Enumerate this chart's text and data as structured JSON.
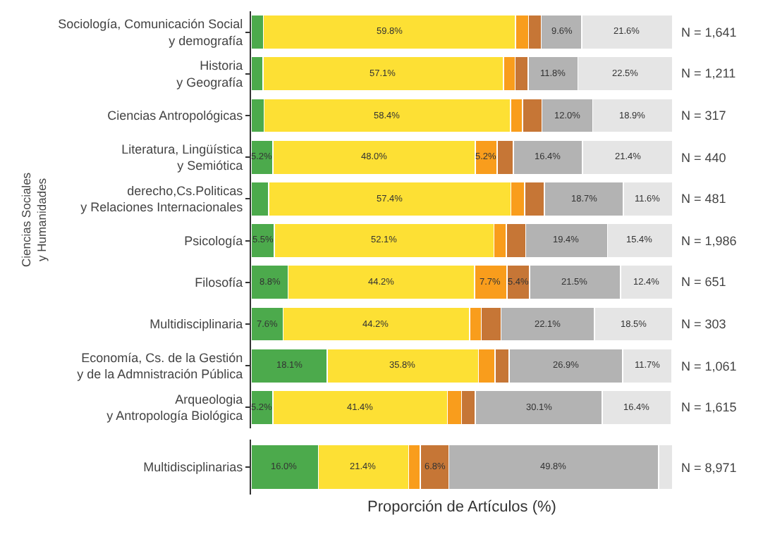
{
  "chart_data": [
    {
      "type": "bar",
      "orientation": "horizontal",
      "stacked": true,
      "ylabel": "Ciencias Sociales\ny Humanidades",
      "xlim": [
        0,
        100
      ],
      "tick_labels": "y",
      "categories": [
        "Sociología, Comunicación Social\ny demografía",
        "Historia\ny Geografía",
        "Ciencias Antropológicas",
        "Literatura, Lingüística\ny Semiótica",
        "derecho,Cs.Politicas\ny Relaciones Internacionales",
        "Psicología",
        "Filosofía",
        "Multidisciplinaria",
        "Economía, Cs. de la Gestión\ny de la Admnistración Pública",
        "Arqueologia\ny Antropología Biológica"
      ],
      "series": [
        {
          "color": "#4caa4c",
          "values": [
            2.9,
            2.8,
            3.1,
            5.2,
            4.2,
            5.5,
            8.8,
            7.6,
            18.1,
            5.2
          ],
          "value_labels": [
            null,
            null,
            null,
            "5.2%",
            null,
            "5.5%",
            "8.8%",
            "7.6%",
            "18.1%",
            "5.2%"
          ]
        },
        {
          "color": "#fde034",
          "values": [
            59.8,
            57.1,
            58.4,
            48.0,
            57.4,
            52.1,
            44.2,
            44.2,
            35.8,
            41.4
          ],
          "value_labels": [
            "59.8%",
            "57.1%",
            "58.4%",
            "48.0%",
            "57.4%",
            "52.1%",
            "44.2%",
            "44.2%",
            "35.8%",
            "41.4%"
          ]
        },
        {
          "color": "#f99d1c",
          "values": [
            3.1,
            2.7,
            2.9,
            5.2,
            3.3,
            2.9,
            7.7,
            2.8,
            4.0,
            3.3
          ],
          "value_labels": [
            null,
            null,
            null,
            "5.2%",
            null,
            null,
            "7.7%",
            null,
            null,
            null
          ]
        },
        {
          "color": "#c67636",
          "values": [
            3.0,
            3.1,
            4.6,
            3.8,
            4.7,
            4.6,
            5.4,
            4.7,
            3.3,
            3.3
          ],
          "value_labels": [
            null,
            null,
            null,
            null,
            null,
            null,
            "5.4%",
            null,
            null,
            null
          ]
        },
        {
          "color": "#b3b3b3",
          "values": [
            9.6,
            11.8,
            12.0,
            16.4,
            18.7,
            19.4,
            21.5,
            22.1,
            26.9,
            30.1
          ],
          "value_labels": [
            "9.6%",
            "11.8%",
            "12.0%",
            "16.4%",
            "18.7%",
            "19.4%",
            "21.5%",
            "22.1%",
            "26.9%",
            "30.1%"
          ]
        },
        {
          "color": "#e5e5e5",
          "values": [
            21.6,
            22.5,
            18.9,
            21.4,
            11.6,
            15.4,
            12.4,
            18.5,
            11.7,
            16.4
          ],
          "value_labels": [
            "21.6%",
            "22.5%",
            "18.9%",
            "21.4%",
            "11.6%",
            "15.4%",
            "12.4%",
            "18.5%",
            "11.7%",
            "16.4%"
          ]
        }
      ],
      "annotations": [
        "N = 1,641",
        "N = 1,211",
        "N = 317",
        "N = 440",
        "N = 481",
        "N = 1,986",
        "N = 651",
        "N = 303",
        "N = 1,061",
        "N = 1,615"
      ]
    },
    {
      "type": "bar",
      "orientation": "horizontal",
      "stacked": true,
      "xlabel": "Proporción de Artículos (%)",
      "xlim": [
        0,
        100
      ],
      "tick_labels": "y",
      "categories": [
        "Multidisciplinarias"
      ],
      "series": [
        {
          "color": "#4caa4c",
          "values": [
            16.0
          ],
          "value_labels": [
            "16.0%"
          ]
        },
        {
          "color": "#fde034",
          "values": [
            21.4
          ],
          "value_labels": [
            "21.4%"
          ]
        },
        {
          "color": "#f99d1c",
          "values": [
            2.7
          ],
          "value_labels": [
            null
          ]
        },
        {
          "color": "#c67636",
          "values": [
            6.8
          ],
          "value_labels": [
            "6.8%"
          ]
        },
        {
          "color": "#b3b3b3",
          "values": [
            49.8
          ],
          "value_labels": [
            "49.8%"
          ]
        },
        {
          "color": "#e5e5e5",
          "values": [
            3.3
          ],
          "value_labels": [
            null
          ]
        }
      ],
      "annotations": [
        "N = 8,971"
      ]
    }
  ]
}
